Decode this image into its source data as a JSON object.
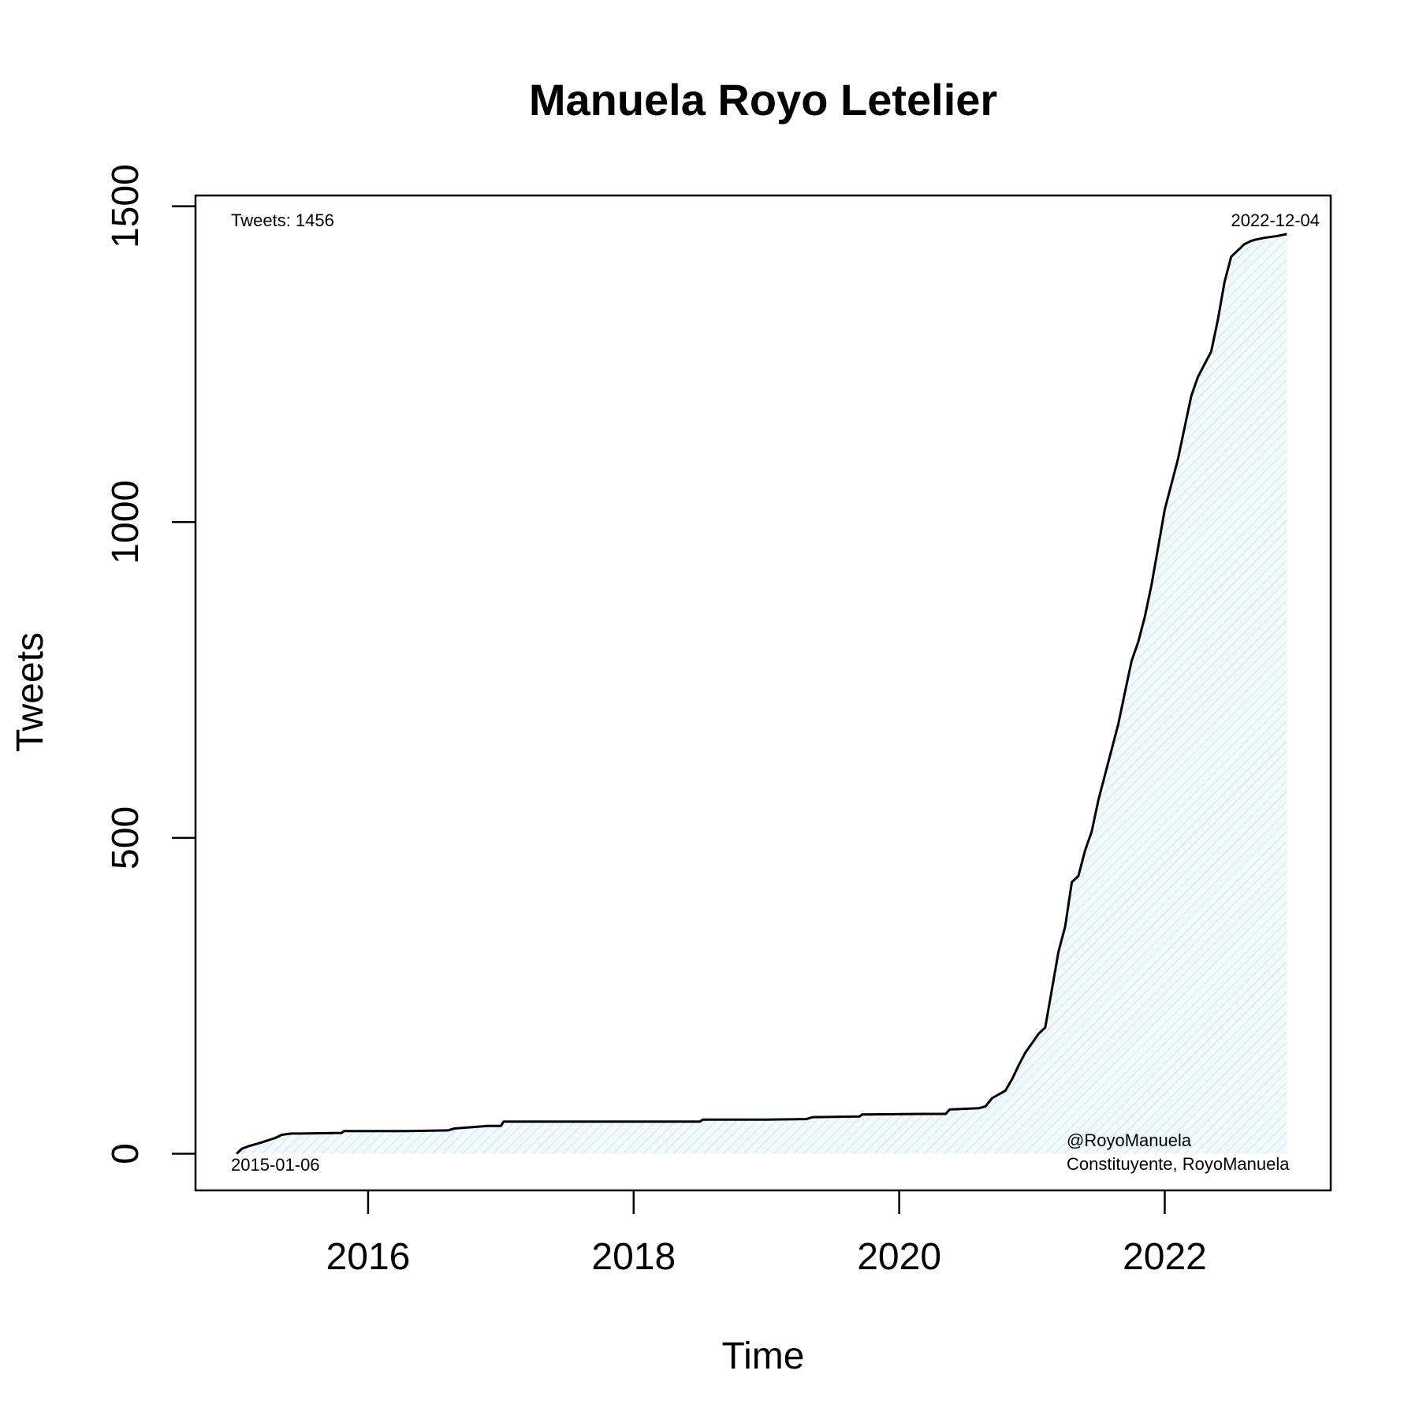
{
  "chart_data": {
    "type": "area",
    "title": "Manuela Royo Letelier",
    "xlabel": "Time",
    "ylabel": "Tweets",
    "x_ticks": [
      2016,
      2018,
      2020,
      2022
    ],
    "y_ticks": [
      0,
      500,
      1000,
      1500
    ],
    "xlim": [
      2014.7,
      2023.25
    ],
    "ylim": [
      -58,
      1517
    ],
    "grid": false,
    "fill_color": "#e6f3f7",
    "line_color": "#000000",
    "annotations": {
      "top_left": "Tweets: 1456",
      "top_right": "2022-12-04",
      "bottom_left": "2015-01-06",
      "bottom_right_line1": "@RoyoManuela",
      "bottom_right_line2": "Constituyente, RoyoManuela"
    },
    "series": [
      {
        "x": [
          2015.01,
          2015.05,
          2015.1,
          2015.2,
          2015.3,
          2015.35,
          2015.42,
          2015.5,
          2015.8,
          2015.82,
          2016.3,
          2016.6,
          2016.65,
          2016.9,
          2017.0,
          2017.02,
          2017.5,
          2018.0,
          2018.5,
          2018.52,
          2019.0,
          2019.3,
          2019.35,
          2019.7,
          2019.72,
          2020.2,
          2020.35,
          2020.38,
          2020.6,
          2020.65,
          2020.7,
          2020.8,
          2020.85,
          2020.9,
          2020.95,
          2021.0,
          2021.05,
          2021.1,
          2021.15,
          2021.2,
          2021.25,
          2021.3,
          2021.35,
          2021.4,
          2021.45,
          2021.5,
          2021.55,
          2021.6,
          2021.65,
          2021.7,
          2021.75,
          2021.8,
          2021.85,
          2021.9,
          2021.95,
          2022.0,
          2022.05,
          2022.1,
          2022.15,
          2022.2,
          2022.25,
          2022.3,
          2022.35,
          2022.4,
          2022.45,
          2022.5,
          2022.55,
          2022.6,
          2022.65,
          2022.68,
          2022.75,
          2022.85,
          2022.92
        ],
        "y": [
          0,
          8,
          12,
          18,
          25,
          30,
          32,
          32,
          33,
          36,
          36,
          37,
          40,
          44,
          44,
          51,
          51,
          51,
          51,
          54,
          54,
          55,
          58,
          59,
          62,
          63,
          63,
          70,
          72,
          75,
          88,
          100,
          118,
          140,
          160,
          175,
          190,
          200,
          260,
          320,
          360,
          430,
          440,
          480,
          510,
          560,
          600,
          640,
          680,
          730,
          780,
          810,
          850,
          900,
          960,
          1020,
          1060,
          1100,
          1150,
          1200,
          1230,
          1250,
          1270,
          1320,
          1380,
          1420,
          1430,
          1440,
          1445,
          1447,
          1450,
          1453,
          1456
        ]
      }
    ]
  }
}
